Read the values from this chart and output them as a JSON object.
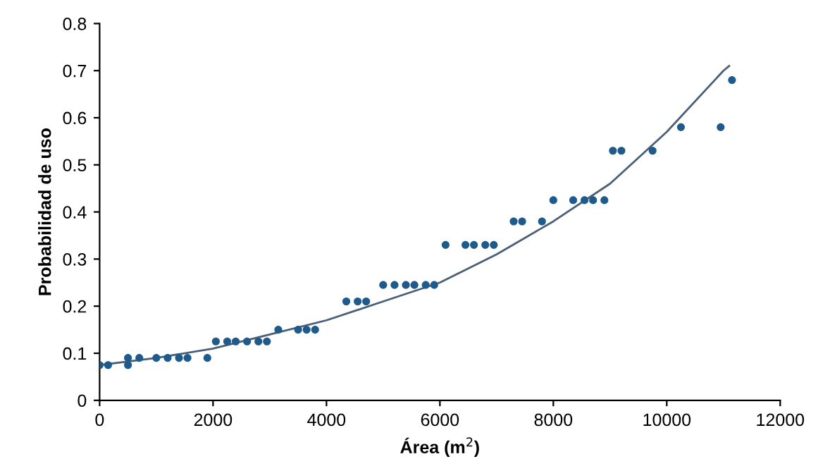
{
  "chart_data": {
    "type": "scatter",
    "xlabel": "Área (m$^{2}$)",
    "ylabel": "Probabilidad de uso",
    "xlim": [
      0,
      12000
    ],
    "xticks": [
      0,
      2000,
      4000,
      6000,
      8000,
      10000,
      12000
    ],
    "ylim": [
      0,
      0.8
    ],
    "yticks": [
      0,
      0.1,
      0.2,
      0.3,
      0.4,
      0.5,
      0.6,
      0.7,
      0.8
    ],
    "grid": false,
    "marker": "circle",
    "series": [
      {
        "color": "#1f5a8c",
        "x": [
          0,
          150,
          500,
          500,
          700,
          1000,
          1200,
          1400,
          1550,
          1900,
          2050,
          2250,
          2400,
          2600,
          2800,
          2950,
          3150,
          3500,
          3650,
          3800,
          4350,
          4550,
          4700,
          5000,
          5200,
          5400,
          5550,
          5750,
          5900,
          6100,
          6450,
          6600,
          6800,
          6950,
          7300,
          7450,
          7800,
          8000,
          8350,
          8550,
          8700,
          8900,
          9050,
          9200,
          9750,
          10250,
          10950,
          11150
        ],
        "values": [
          0.075,
          0.075,
          0.075,
          0.09,
          0.09,
          0.09,
          0.09,
          0.09,
          0.09,
          0.09,
          0.125,
          0.125,
          0.125,
          0.125,
          0.125,
          0.125,
          0.15,
          0.15,
          0.15,
          0.15,
          0.21,
          0.21,
          0.21,
          0.245,
          0.245,
          0.245,
          0.245,
          0.245,
          0.245,
          0.33,
          0.33,
          0.33,
          0.33,
          0.33,
          0.38,
          0.38,
          0.38,
          0.425,
          0.425,
          0.425,
          0.425,
          0.425,
          0.53,
          0.53,
          0.53,
          0.58,
          0.58,
          0.68
        ]
      },
      {
        "type": "line",
        "color": "#4a5f78",
        "marker": "none",
        "x": [
          0,
          1000,
          2000,
          3000,
          4000,
          5000,
          6000,
          7000,
          8000,
          9000,
          10000,
          11000,
          11100
        ],
        "values": [
          0.075,
          0.09,
          0.11,
          0.14,
          0.17,
          0.21,
          0.25,
          0.31,
          0.38,
          0.46,
          0.57,
          0.7,
          0.71
        ]
      }
    ]
  }
}
